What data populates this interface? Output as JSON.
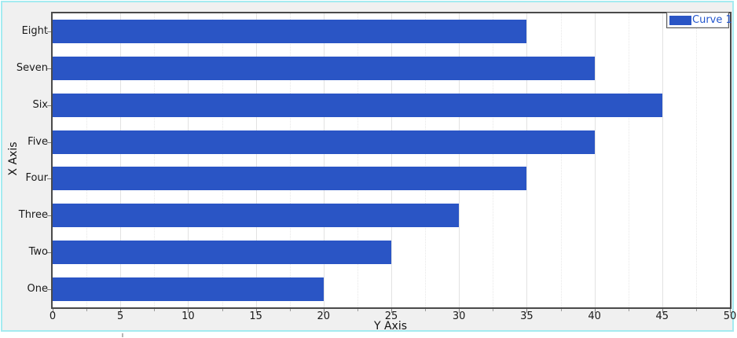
{
  "chart_data": {
    "type": "bar",
    "orientation": "horizontal",
    "categories_top_to_bottom": [
      "Eight",
      "Seven",
      "Six",
      "Five",
      "Four",
      "Three",
      "Two",
      "One"
    ],
    "series": [
      {
        "name": "Curve 1",
        "values": [
          35,
          40,
          45,
          40,
          35,
          30,
          25,
          20
        ]
      }
    ],
    "xlabel": "Y Axis",
    "ylabel": "X Axis",
    "value_axis": {
      "min": 0,
      "max": 50,
      "major_tick_step": 5,
      "minor_tick_step": 2.5,
      "tick_labels": [
        "0",
        "5",
        "10",
        "15",
        "20",
        "25",
        "30",
        "35",
        "40",
        "45",
        "50"
      ]
    },
    "grid": {
      "major_lines": true,
      "minor_lines_dotted": true
    },
    "legend": {
      "position": "top-right",
      "entries": [
        {
          "label": "Curve 1"
        }
      ]
    },
    "colors": {
      "bar": "#2a55c5",
      "legend_text": "#2255cc",
      "plot_border": "#4a4a4a",
      "grid_major": "#e2e2e2",
      "grid_minor": "#e7e7e7",
      "widget_border": "#a4ebf0",
      "widget_bg": "#f0f0f0",
      "plot_bg": "#ffffff"
    }
  }
}
